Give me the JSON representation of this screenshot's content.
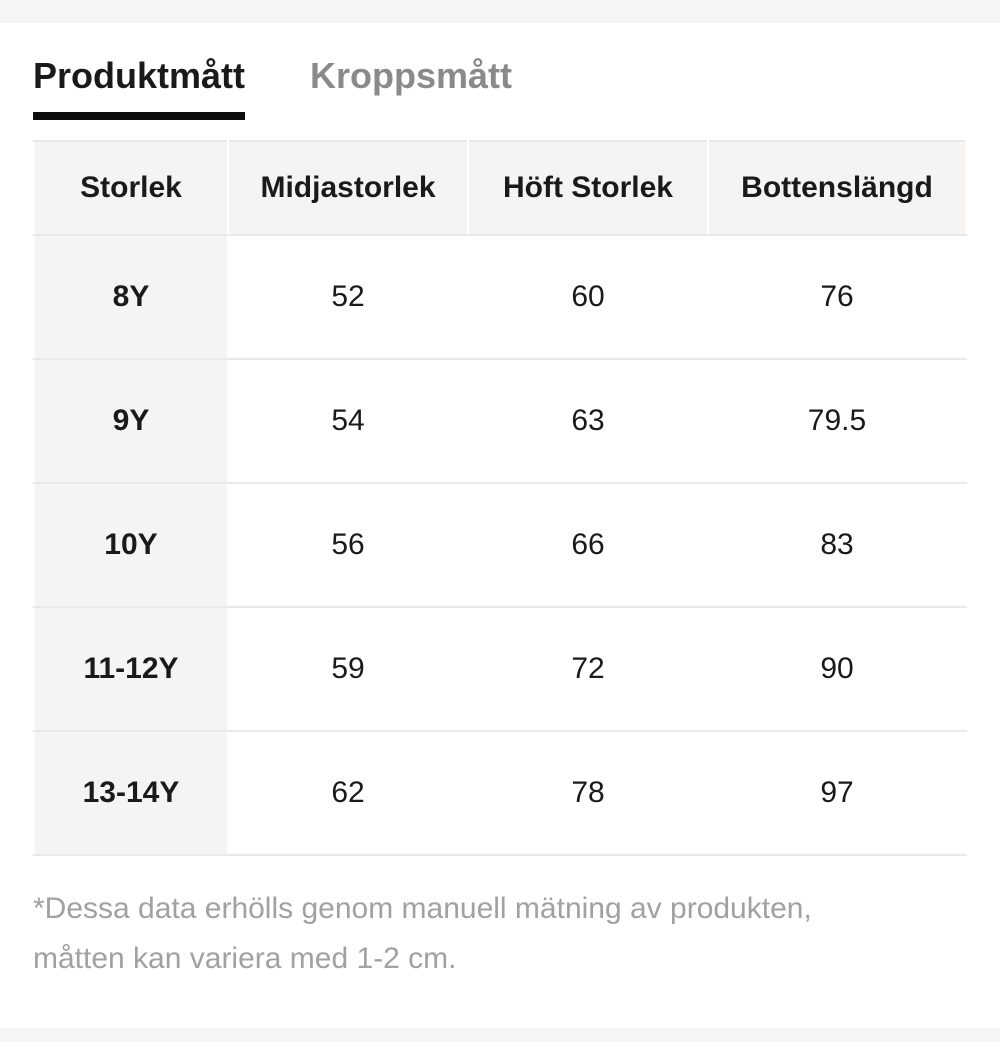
{
  "tabs": [
    {
      "label": "Produktmått",
      "active": true
    },
    {
      "label": "Kroppsmått",
      "active": false
    }
  ],
  "size_table": {
    "headers": [
      "Storlek",
      "Midjastorlek",
      "Höft Storlek",
      "Bottenslängd"
    ],
    "rows": [
      {
        "size": "8Y",
        "values": [
          "52",
          "60",
          "76"
        ]
      },
      {
        "size": "9Y",
        "values": [
          "54",
          "63",
          "79.5"
        ]
      },
      {
        "size": "10Y",
        "values": [
          "56",
          "66",
          "83"
        ]
      },
      {
        "size": "11-12Y",
        "values": [
          "59",
          "72",
          "90"
        ]
      },
      {
        "size": "13-14Y",
        "values": [
          "62",
          "78",
          "97"
        ]
      }
    ]
  },
  "footnote": {
    "line1": "*Dessa data erhölls genom manuell mätning av produkten,",
    "line2": "måtten kan variera med 1-2 cm."
  },
  "colors": {
    "accent_underline": "#0d0d0d",
    "text_primary": "#1a1a1a",
    "tab_inactive": "#8a8a8a",
    "cell_header_bg": "#f5f4f2",
    "row_separator": "#e9e9e9",
    "edge_strip": "#f5f5f5",
    "footnote_text": "#a1a1a1"
  }
}
